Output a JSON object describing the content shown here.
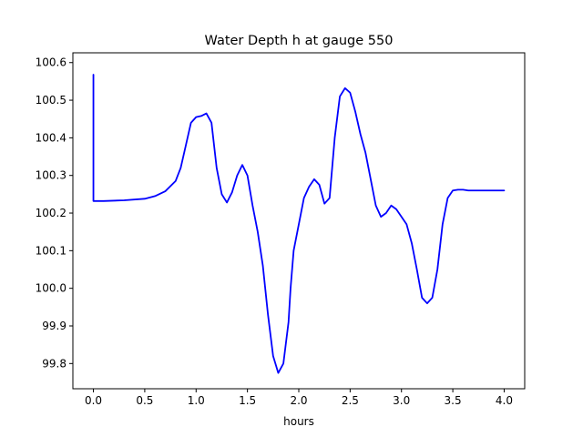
{
  "chart_data": {
    "type": "line",
    "title": "Water Depth h at gauge 550",
    "xlabel": "hours",
    "ylabel": "",
    "xlim": [
      -0.2,
      4.2
    ],
    "ylim": [
      99.733,
      100.626
    ],
    "grid": false,
    "xticks": [
      0.0,
      0.5,
      1.0,
      1.5,
      2.0,
      2.5,
      3.0,
      3.5,
      4.0
    ],
    "xtick_labels": [
      "0.0",
      "0.5",
      "1.0",
      "1.5",
      "2.0",
      "2.5",
      "3.0",
      "3.5",
      "4.0"
    ],
    "yticks": [
      99.8,
      99.9,
      100.0,
      100.1,
      100.2,
      100.3,
      100.4,
      100.5,
      100.6
    ],
    "ytick_labels": [
      "99.8",
      "99.9",
      "100.0",
      "100.1",
      "100.2",
      "100.3",
      "100.4",
      "100.5",
      "100.6"
    ],
    "series": [
      {
        "color": "#0000ff",
        "x": [
          0.0,
          0.0,
          0.01,
          0.1,
          0.3,
          0.5,
          0.6,
          0.7,
          0.8,
          0.85,
          0.9,
          0.95,
          1.0,
          1.05,
          1.1,
          1.15,
          1.2,
          1.25,
          1.3,
          1.35,
          1.4,
          1.45,
          1.5,
          1.55,
          1.6,
          1.65,
          1.7,
          1.75,
          1.8,
          1.85,
          1.9,
          1.92,
          1.95,
          2.0,
          2.05,
          2.1,
          2.15,
          2.2,
          2.25,
          2.3,
          2.35,
          2.4,
          2.45,
          2.5,
          2.55,
          2.6,
          2.65,
          2.7,
          2.75,
          2.8,
          2.85,
          2.9,
          2.95,
          3.0,
          3.05,
          3.1,
          3.15,
          3.2,
          3.25,
          3.3,
          3.35,
          3.4,
          3.45,
          3.5,
          3.55,
          3.6,
          3.65,
          3.7,
          3.75,
          3.8,
          3.85,
          3.9,
          3.95,
          4.0
        ],
        "y": [
          100.568,
          100.232,
          100.232,
          100.232,
          100.234,
          100.238,
          100.245,
          100.258,
          100.285,
          100.32,
          100.38,
          100.44,
          100.455,
          100.458,
          100.465,
          100.44,
          100.32,
          100.25,
          100.228,
          100.255,
          100.3,
          100.328,
          100.3,
          100.22,
          100.15,
          100.06,
          99.93,
          99.82,
          99.775,
          99.8,
          99.91,
          100.0,
          100.1,
          100.17,
          100.24,
          100.27,
          100.29,
          100.275,
          100.225,
          100.24,
          100.4,
          100.51,
          100.532,
          100.52,
          100.47,
          100.41,
          100.36,
          100.29,
          100.22,
          100.19,
          100.2,
          100.22,
          100.21,
          100.19,
          100.17,
          100.12,
          100.05,
          99.975,
          99.96,
          99.975,
          100.05,
          100.17,
          100.24,
          100.26,
          100.262,
          100.262,
          100.26,
          100.26,
          100.26,
          100.26,
          100.26,
          100.26,
          100.26,
          100.26
        ]
      }
    ]
  }
}
